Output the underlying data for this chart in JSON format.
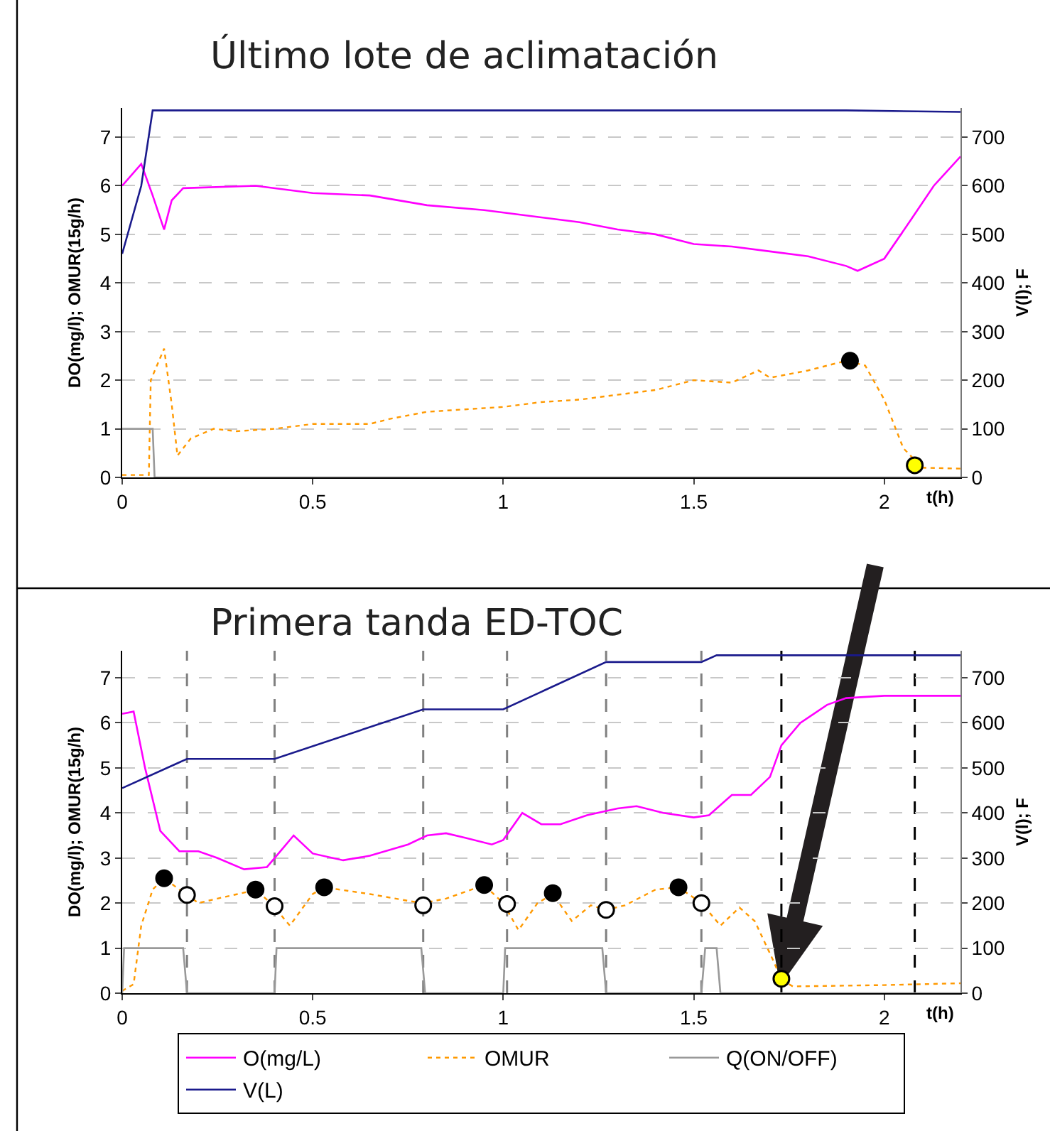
{
  "chart_data": [
    {
      "type": "line",
      "title": "Último lote de aclimatación",
      "xlabel": "t(h)",
      "ylabel": "DO(mg/l); OMUR(15g/h)",
      "y2label": "V(l); F",
      "xlim": [
        0,
        2.2
      ],
      "xticks": [
        0,
        0.5,
        1,
        1.5,
        2
      ],
      "ylim": [
        0,
        7.6
      ],
      "yticks": [
        0,
        1,
        2,
        3,
        4,
        5,
        6,
        7
      ],
      "y2lim": [
        0,
        760
      ],
      "y2ticks": [
        0,
        100,
        200,
        300,
        400,
        500,
        600,
        700
      ],
      "grid": "y",
      "legend": false,
      "series": [
        {
          "color": "#ff00ff",
          "line_style": "solid",
          "x": [
            0,
            0.05,
            0.08,
            0.11,
            0.13,
            0.16,
            0.35,
            0.5,
            0.65,
            0.8,
            0.95,
            1.1,
            1.2,
            1.3,
            1.4,
            1.5,
            1.6,
            1.7,
            1.8,
            1.9,
            1.93,
            2.0,
            2.07,
            2.13,
            2.2
          ],
          "values": [
            6.0,
            6.45,
            5.8,
            5.1,
            5.7,
            5.95,
            6.0,
            5.85,
            5.8,
            5.6,
            5.5,
            5.35,
            5.25,
            5.1,
            5.0,
            4.8,
            4.75,
            4.65,
            4.55,
            4.35,
            4.25,
            4.5,
            5.3,
            6.0,
            6.6
          ]
        },
        {
          "color": "#ff9900",
          "line_style": "dotted",
          "x": [
            0,
            0.07,
            0.075,
            0.11,
            0.13,
            0.145,
            0.18,
            0.24,
            0.3,
            0.4,
            0.5,
            0.65,
            0.7,
            0.8,
            0.9,
            1.0,
            1.1,
            1.2,
            1.3,
            1.4,
            1.5,
            1.6,
            1.67,
            1.7,
            1.8,
            1.9,
            1.95,
            2.0,
            2.05,
            2.1,
            2.2
          ],
          "values": [
            0.05,
            0.05,
            2.0,
            2.65,
            1.5,
            0.45,
            0.8,
            1.0,
            0.95,
            1.0,
            1.1,
            1.1,
            1.2,
            1.35,
            1.4,
            1.45,
            1.55,
            1.6,
            1.7,
            1.8,
            2.0,
            1.95,
            2.2,
            2.05,
            2.2,
            2.4,
            2.3,
            1.6,
            0.6,
            0.2,
            0.18
          ]
        },
        {
          "color": "#999999",
          "line_style": "solid",
          "x": [
            0,
            0.08,
            0.085,
            2.2
          ],
          "values": [
            1,
            1,
            0,
            0
          ]
        },
        {
          "color": "#1a1a8c",
          "line_style": "solid",
          "axis": "y2",
          "x": [
            0,
            0.05,
            0.08,
            1.9,
            2.2
          ],
          "values": [
            460,
            600,
            755,
            755,
            752
          ]
        },
        {
          "type": "scatter",
          "marker": "circle",
          "color": "#000000",
          "x": [
            1.91
          ],
          "values": [
            2.4
          ]
        },
        {
          "type": "scatter",
          "marker": "circle",
          "color": "#ffff00",
          "x": [
            2.08
          ],
          "values": [
            0.25
          ]
        }
      ]
    },
    {
      "type": "line",
      "title": "Primera tanda ED-TOC",
      "xlabel": "t(h)",
      "ylabel": "DO(mg/l); OMUR(15g/h)",
      "y2label": "V(l); F",
      "xlim": [
        0,
        2.2
      ],
      "xticks": [
        0,
        0.5,
        1,
        1.5,
        2
      ],
      "ylim": [
        0,
        7.6
      ],
      "yticks": [
        0,
        1,
        2,
        3,
        4,
        5,
        6,
        7
      ],
      "y2lim": [
        0,
        760
      ],
      "y2ticks": [
        0,
        100,
        200,
        300,
        400,
        500,
        600,
        700
      ],
      "grid": "y",
      "legend": "bottom",
      "ref_lines": [
        {
          "axis": "x",
          "value": 0.17,
          "color": "#808080",
          "line_style": "dashed"
        },
        {
          "axis": "x",
          "value": 0.4,
          "color": "#808080",
          "line_style": "dashed"
        },
        {
          "axis": "x",
          "value": 0.79,
          "color": "#808080",
          "line_style": "dashed"
        },
        {
          "axis": "x",
          "value": 1.01,
          "color": "#808080",
          "line_style": "dashed"
        },
        {
          "axis": "x",
          "value": 1.27,
          "color": "#808080",
          "line_style": "dashed"
        },
        {
          "axis": "x",
          "value": 1.52,
          "color": "#808080",
          "line_style": "dashed"
        },
        {
          "axis": "x",
          "value": 1.73,
          "color": "#000000",
          "line_style": "dashed"
        },
        {
          "axis": "x",
          "value": 2.08,
          "color": "#000000",
          "line_style": "dashed"
        }
      ],
      "series": [
        {
          "name": "O(mg/L)",
          "color": "#ff00ff",
          "line_style": "solid",
          "x": [
            0,
            0.03,
            0.06,
            0.1,
            0.15,
            0.2,
            0.25,
            0.32,
            0.38,
            0.42,
            0.45,
            0.5,
            0.58,
            0.65,
            0.75,
            0.8,
            0.85,
            0.9,
            0.97,
            1.0,
            1.05,
            1.1,
            1.15,
            1.22,
            1.3,
            1.35,
            1.42,
            1.5,
            1.54,
            1.6,
            1.65,
            1.7,
            1.73,
            1.78,
            1.85,
            1.9,
            2.0,
            2.2
          ],
          "values": [
            6.2,
            6.25,
            5.0,
            3.6,
            3.15,
            3.15,
            3.0,
            2.75,
            2.8,
            3.2,
            3.5,
            3.1,
            2.95,
            3.05,
            3.3,
            3.5,
            3.55,
            3.45,
            3.3,
            3.4,
            4.0,
            3.75,
            3.75,
            3.95,
            4.1,
            4.15,
            4.0,
            3.9,
            3.95,
            4.4,
            4.4,
            4.8,
            5.5,
            6.0,
            6.4,
            6.55,
            6.6,
            6.6
          ]
        },
        {
          "name": "OMUR",
          "color": "#ff9900",
          "line_style": "dotted",
          "x": [
            0,
            0.03,
            0.05,
            0.08,
            0.11,
            0.15,
            0.2,
            0.25,
            0.33,
            0.35,
            0.39,
            0.44,
            0.5,
            0.53,
            0.65,
            0.75,
            0.79,
            0.85,
            0.95,
            1.0,
            1.04,
            1.09,
            1.13,
            1.18,
            1.23,
            1.27,
            1.32,
            1.4,
            1.46,
            1.52,
            1.57,
            1.62,
            1.66,
            1.71,
            1.73,
            1.76,
            2.0,
            2.2
          ],
          "values": [
            0.05,
            0.2,
            1.5,
            2.3,
            2.55,
            2.3,
            2.0,
            2.1,
            2.25,
            2.3,
            2.0,
            1.5,
            2.2,
            2.35,
            2.2,
            2.05,
            2.0,
            2.1,
            2.4,
            2.0,
            1.4,
            2.0,
            2.2,
            1.6,
            1.95,
            1.85,
            1.95,
            2.3,
            2.35,
            2.0,
            1.5,
            1.9,
            1.6,
            0.7,
            0.3,
            0.15,
            0.18,
            0.22
          ]
        },
        {
          "name": "Q(ON/OFF)",
          "color": "#999999",
          "line_style": "solid",
          "x": [
            0,
            0.005,
            0.16,
            0.17,
            0.4,
            0.405,
            0.785,
            0.795,
            1.0,
            1.005,
            1.26,
            1.27,
            1.52,
            1.53,
            1.56,
            1.57,
            2.2
          ],
          "values": [
            0,
            1,
            1,
            0,
            0,
            1,
            1,
            0,
            0,
            1,
            1,
            0,
            0,
            1,
            1,
            0,
            0
          ]
        },
        {
          "name": "V(L)",
          "color": "#1a1a8c",
          "line_style": "solid",
          "axis": "y2",
          "x": [
            0,
            0.17,
            0.4,
            0.79,
            1.0,
            1.27,
            1.52,
            1.56,
            2.2
          ],
          "values": [
            455,
            520,
            520,
            630,
            630,
            735,
            735,
            750,
            750
          ]
        },
        {
          "type": "scatter",
          "marker": "circle",
          "color": "#000000",
          "x": [
            0.11,
            0.35,
            0.53,
            0.95,
            1.13,
            1.46
          ],
          "values": [
            2.55,
            2.3,
            2.35,
            2.4,
            2.22,
            2.35
          ]
        },
        {
          "type": "scatter",
          "marker": "circle",
          "color": "#ffffff",
          "x": [
            0.17,
            0.4,
            0.79,
            1.01,
            1.27,
            1.52
          ],
          "values": [
            2.18,
            1.93,
            1.95,
            1.98,
            1.85,
            2.0
          ]
        },
        {
          "type": "scatter",
          "marker": "circle",
          "color": "#ffff00",
          "x": [
            1.73
          ],
          "values": [
            0.32
          ]
        }
      ]
    }
  ]
}
